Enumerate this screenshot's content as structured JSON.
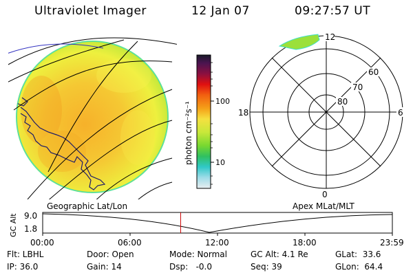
{
  "header": {
    "title": "Ultraviolet Imager",
    "date": "12 Jan 07",
    "time": "09:27:57 UT"
  },
  "colorbar": {
    "unit_label": "photon cm⁻²s⁻¹",
    "ticks": [
      "100",
      "10"
    ]
  },
  "polar": {
    "mlt_labels": [
      "12",
      "6",
      "0",
      "18"
    ],
    "lat_labels": [
      "60",
      "70",
      "80"
    ]
  },
  "timeline": {
    "left_label": "Geographic Lat/Lon",
    "right_label": "Apex MLat/MLT",
    "axis_label": "GC Alt",
    "y_ticks": [
      "9.0",
      "1.8"
    ],
    "x_ticks": [
      "00:00",
      "06:00",
      "12:00",
      "18:00",
      "23:59"
    ],
    "marker_time_hours": 9.47,
    "marker_color": "#cc0000"
  },
  "status": {
    "flt": "Flt: LBHL",
    "ip": "IP: 36.0",
    "door": "Door: Open",
    "gain": "Gain: 14",
    "mode": "Mode: Normal",
    "dsp": "Dsp:   -0.0",
    "gc_alt": "GC Alt: 4.1 Re",
    "seq": "Seq: 39",
    "glat": "GLat:  33.6",
    "glon": "GLon:  64.4"
  },
  "colors": {
    "earth_yellow": "#f2e838",
    "earth_orange": "#f5b728",
    "earth_edge": "#9be03a",
    "edge_glow": "#40e0c8"
  }
}
